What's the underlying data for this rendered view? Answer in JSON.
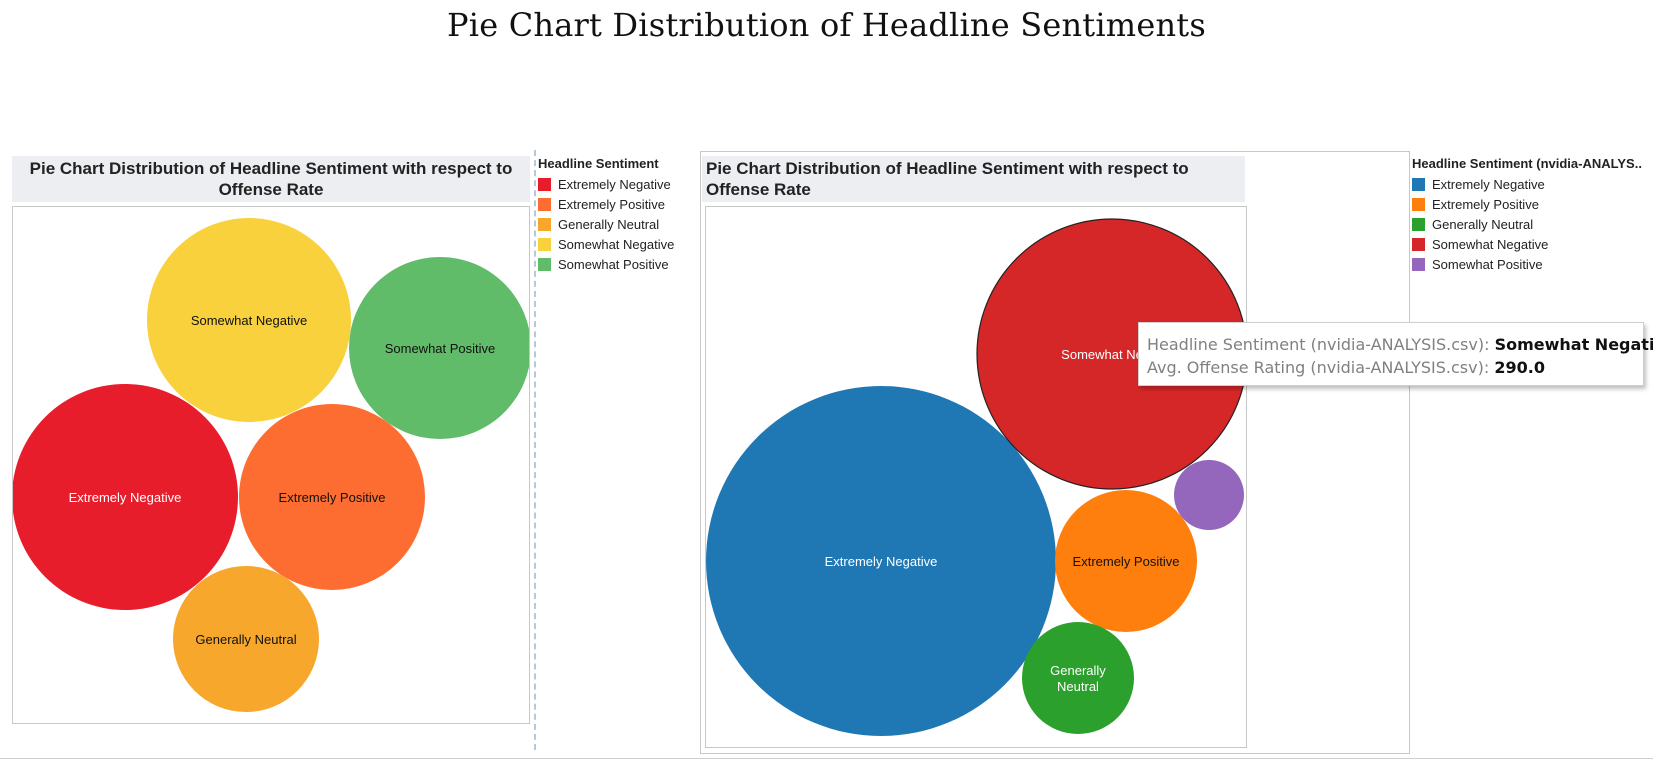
{
  "page_title": "Pie Chart Distribution of Headline Sentiments",
  "chart_data": [
    {
      "type": "bubble",
      "title": "Pie Chart Distribution of Headline Sentiment with respect to Offense Rate",
      "legend_title": "Headline Sentiment",
      "legend_position": "right",
      "categories": [
        "Extremely Negative",
        "Extremely Positive",
        "Generally Neutral",
        "Somewhat Negative",
        "Somewhat Positive"
      ],
      "colors": [
        "#e81d2c",
        "#fd6d31",
        "#f7a72b",
        "#f9d13c",
        "#60bc68"
      ],
      "label_colors": [
        "#ffffff",
        "#111111",
        "#111111",
        "#111111",
        "#111111"
      ]
    },
    {
      "type": "bubble",
      "title": "Pie Chart Distribution of Headline Sentiment with respect to Offense Rate",
      "legend_title": "Headline Sentiment (nvidia-ANALYS..",
      "legend_position": "right",
      "categories": [
        "Extremely Negative",
        "Extremely Positive",
        "Generally Neutral",
        "Somewhat Negative",
        "Somewhat Positive"
      ],
      "colors": [
        "#1f77b4",
        "#ff7f0e",
        "#2ca02c",
        "#d62728",
        "#9467bd"
      ],
      "label_colors": [
        "#ffffff",
        "#111111",
        "#ffffff",
        "#ffffff",
        "#ffffff"
      ],
      "labels": [
        "Extremely Negative",
        "Extremely Positive",
        "Generally\nNeutral",
        "Somewhat Ne",
        ""
      ],
      "highlighted": "Somewhat Negative",
      "tooltip": {
        "sentiment_label": "Headline Sentiment (nvidia-ANALYSIS.csv):",
        "sentiment_value": "Somewhat Negative",
        "rating_label": "Avg. Offense Rating (nvidia-ANALYSIS.csv):",
        "rating_value": "290.0"
      }
    }
  ]
}
